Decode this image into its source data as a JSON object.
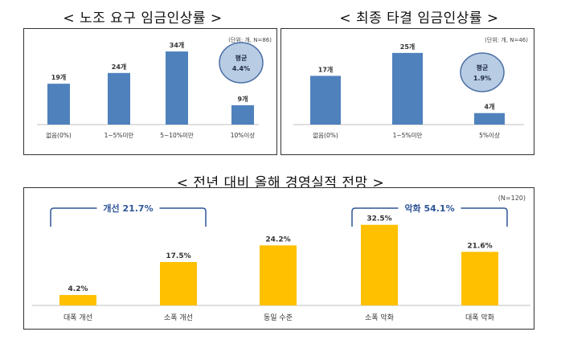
{
  "titles": {
    "top_left": "< 노조 요구 임금인상률 >",
    "top_right": "< 최종 타결 임금인상률 >",
    "bottom": "< 전년 대비 올해 경영실적 전망 >"
  },
  "colors": {
    "blue": "#4f81bd",
    "gold": "#ffc000",
    "circle": "#b8cce4",
    "circle_stroke": "#4a6fa5",
    "bracket": "#2f5597"
  },
  "chart_data": [
    {
      "type": "bar",
      "title": "노조 요구 임금인상률",
      "unit_note": "(단위: 개, N=86)",
      "categories": [
        "없음(0%)",
        "1~5%미만",
        "5~10%미만",
        "10%이상"
      ],
      "values": [
        19,
        24,
        34,
        9
      ],
      "value_labels": [
        "19개",
        "24개",
        "34개",
        "9개"
      ],
      "ylim": [
        0,
        40
      ],
      "annotation": {
        "label": "평균",
        "value": "4.4%"
      }
    },
    {
      "type": "bar",
      "title": "최종 타결 임금인상률",
      "unit_note": "(단위: 개, N=46)",
      "categories": [
        "없음(0%)",
        "1~5%미만",
        "5%이상"
      ],
      "values": [
        17,
        25,
        4
      ],
      "value_labels": [
        "17개",
        "25개",
        "4개"
      ],
      "ylim": [
        0,
        30
      ],
      "annotation": {
        "label": "평균",
        "value": "1.9%"
      }
    },
    {
      "type": "bar",
      "title": "전년 대비 올해 경영실적 전망",
      "unit_note": "(N=120)",
      "categories": [
        "대폭 개선",
        "소폭 개선",
        "동일 수준",
        "소폭 악화",
        "대폭 악화"
      ],
      "values": [
        4.2,
        17.5,
        24.2,
        32.5,
        21.6
      ],
      "value_labels": [
        "4.2%",
        "17.5%",
        "24.2%",
        "32.5%",
        "21.6%"
      ],
      "ylim": [
        0,
        35
      ],
      "groups": [
        {
          "label": "개선 21.7%",
          "from": 0,
          "to": 1
        },
        {
          "label": "악화 54.1%",
          "from": 3,
          "to": 4
        }
      ]
    }
  ]
}
